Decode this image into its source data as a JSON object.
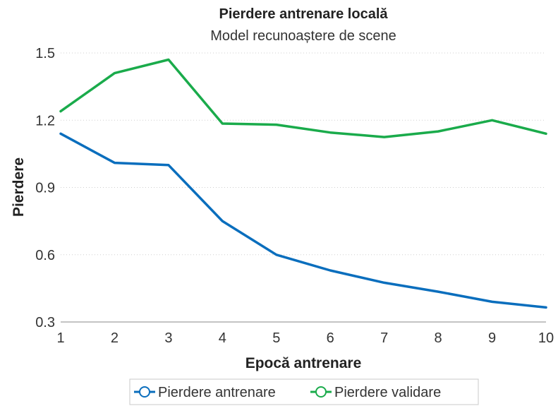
{
  "chart_data": {
    "type": "line",
    "title": "Pierdere antrenare locală",
    "subtitle": "Model recunoaștere de scene",
    "xlabel": "Epocă antrenare",
    "ylabel": "Pierdere",
    "x": [
      1,
      2,
      3,
      4,
      5,
      6,
      7,
      8,
      9,
      10
    ],
    "xlim": [
      1,
      10
    ],
    "ylim": [
      0.3,
      1.5
    ],
    "yticks": [
      0.3,
      0.6,
      0.9,
      1.2,
      1.5
    ],
    "grid": true,
    "legend_position": "bottom",
    "series": [
      {
        "name": "Pierdere antrenare",
        "color": "#0a6ebd",
        "values": [
          1.14,
          1.01,
          1.0,
          0.75,
          0.6,
          0.53,
          0.475,
          0.435,
          0.39,
          0.365
        ]
      },
      {
        "name": "Pierdere validare",
        "color": "#1aab4b",
        "values": [
          1.24,
          1.41,
          1.47,
          1.185,
          1.18,
          1.145,
          1.125,
          1.15,
          1.2,
          1.14
        ]
      }
    ]
  }
}
